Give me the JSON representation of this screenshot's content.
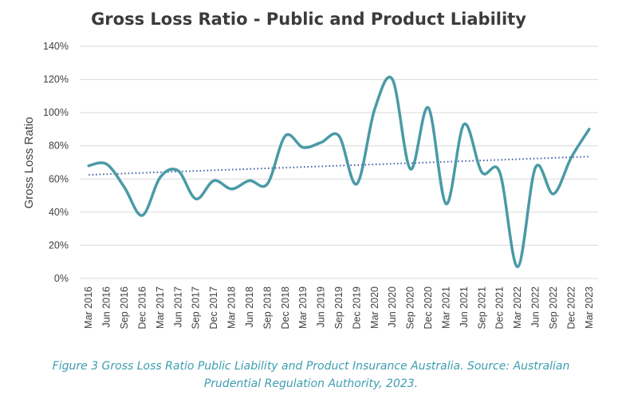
{
  "chart_data": {
    "type": "line",
    "title": "Gross Loss Ratio - Public and Product Liability",
    "ylabel": "Gross Loss Ratio",
    "xlabel": "",
    "ylim": [
      0,
      140
    ],
    "yticks": [
      "0%",
      "20%",
      "40%",
      "60%",
      "80%",
      "100%",
      "120%",
      "140%"
    ],
    "grid": true,
    "categories": [
      "Mar 2016",
      "Jun 2016",
      "Sep 2016",
      "Dec 2016",
      "Mar 2017",
      "Jun 2017",
      "Sep 2017",
      "Dec 2017",
      "Mar 2018",
      "Jun 2018",
      "Sep 2018",
      "Dec 2018",
      "Mar 2019",
      "Jun 2019",
      "Sep 2019",
      "Dec 2019",
      "Mar 2020",
      "Jun 2020",
      "Sep 2020",
      "Dec 2020",
      "Mar 2021",
      "Jun 2021",
      "Sep 2021",
      "Dec 2021",
      "Mar 2022",
      "Jun 2022",
      "Sep 2022",
      "Dec 2022",
      "Mar 2023"
    ],
    "series": [
      {
        "color": "#4a9aa6",
        "values": [
          68,
          69,
          55,
          38,
          61,
          65,
          48,
          59,
          54,
          59,
          57,
          86,
          79,
          82,
          86,
          57,
          102,
          120,
          66,
          103,
          45,
          93,
          64,
          64,
          7,
          67,
          51,
          73,
          90
        ]
      }
    ],
    "trendline": {
      "color": "#3e5ea8",
      "style": "dotted",
      "start": 62.5,
      "end": 73.5
    }
  },
  "caption": {
    "line1": "Figure 3 Gross Loss Ratio Public Liability and Product Insurance Australia. Source: Australian",
    "line2": "Prudential Regulation Authority, 2023."
  }
}
